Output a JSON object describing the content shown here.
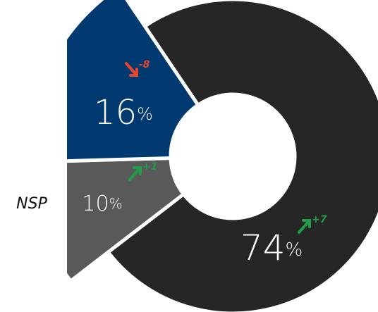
{
  "chart_data": {
    "type": "donut",
    "categories": [
      null,
      "NSP",
      null
    ],
    "values": [
      74,
      10,
      16
    ],
    "value_suffix": "%",
    "colors": [
      "#262626",
      "#595959",
      "#003a70"
    ],
    "deltas": [
      7,
      1,
      -8
    ],
    "delta_labels": [
      "+7",
      "+1",
      "-8"
    ],
    "delta_colors": [
      "#1f9e4a",
      "#1f9e4a",
      "#e8452c"
    ]
  }
}
